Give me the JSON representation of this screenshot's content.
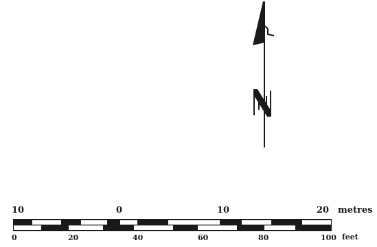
{
  "north_arrow": {
    "letter": "N",
    "color": "#1a1a1a"
  },
  "scale_bar": {
    "metres": {
      "unit": "metres",
      "ticks": [
        "10",
        "0",
        "10",
        "20"
      ]
    },
    "feet": {
      "unit": "feet",
      "ticks": [
        "0",
        "20",
        "40",
        "60",
        "80",
        "100"
      ]
    },
    "colors": {
      "dark": "#1a1a1a",
      "light": "#ffffff"
    }
  }
}
